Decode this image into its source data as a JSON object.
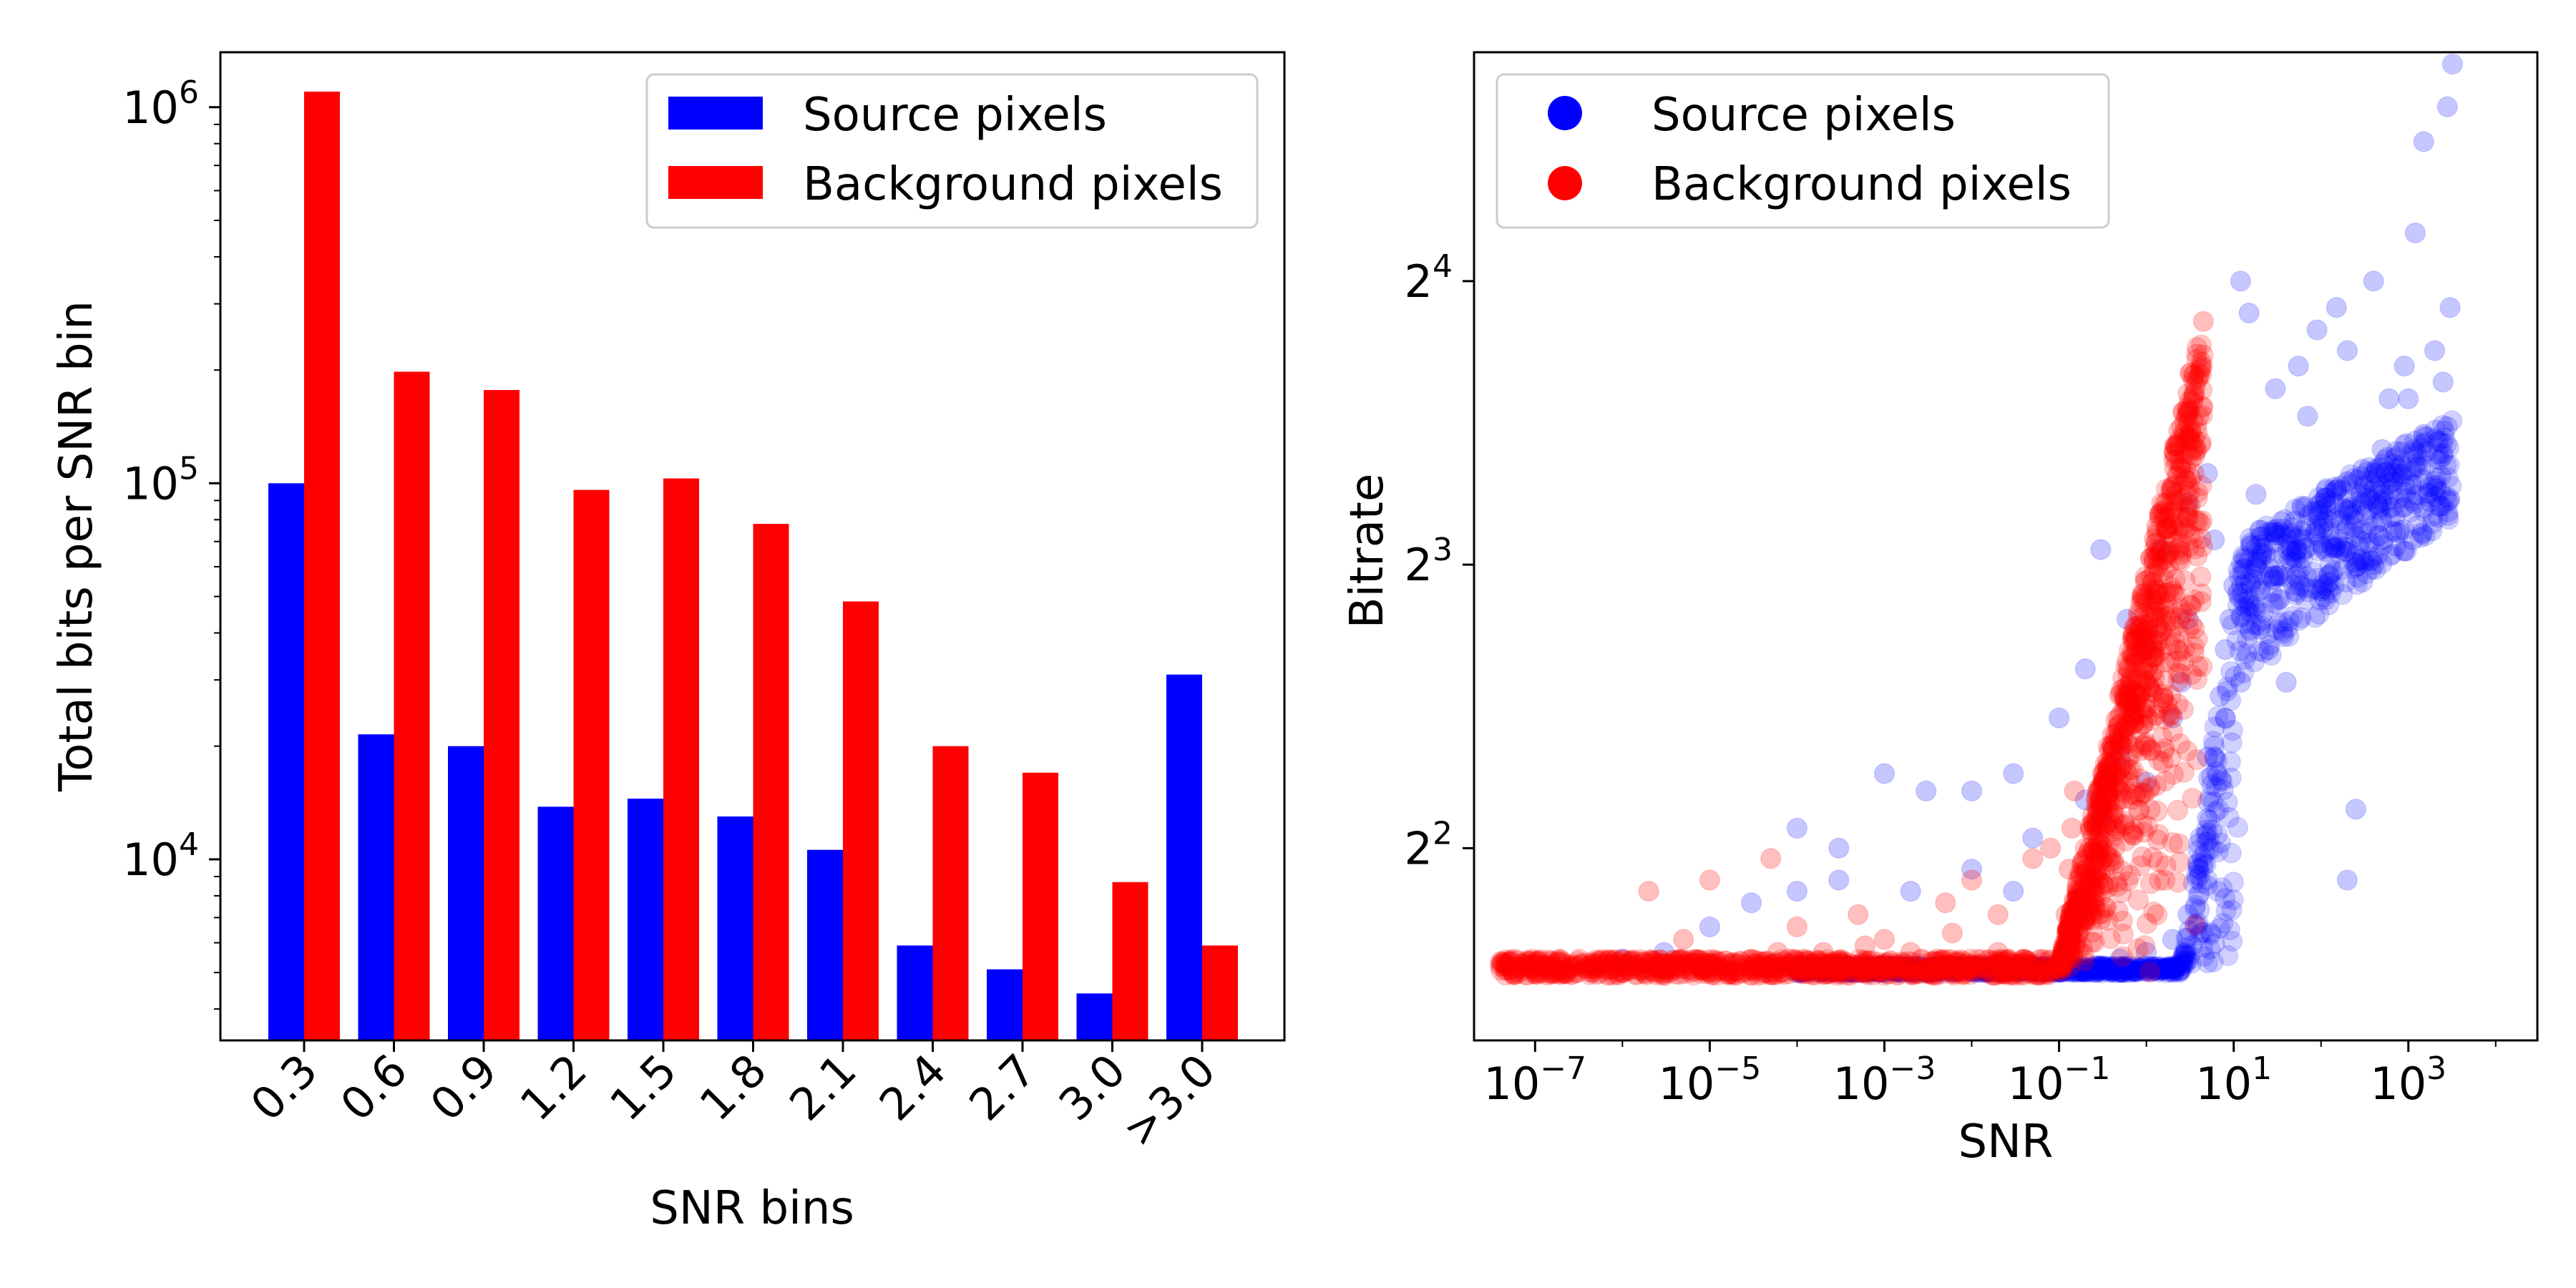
{
  "chart_data": [
    {
      "type": "bar",
      "xlabel": "SNR bins",
      "ylabel": "Total bits per SNR bin",
      "yscale": "log",
      "ylim": [
        3300,
        1400000
      ],
      "categories": [
        "0.3",
        "0.6",
        "0.9",
        "1.2",
        "1.5",
        "1.8",
        "2.1",
        "2.4",
        "2.7",
        "3.0",
        ">3.0"
      ],
      "yticks": [
        {
          "base": "10",
          "exp": "4",
          "value": 10000
        },
        {
          "base": "10",
          "exp": "5",
          "value": 100000
        },
        {
          "base": "10",
          "exp": "6",
          "value": 1000000
        }
      ],
      "legend": {
        "position": "upper right"
      },
      "series": [
        {
          "name": "Source pixels",
          "color": "#0000ff",
          "values": [
            100000,
            21500,
            20000,
            13800,
            14500,
            13000,
            10600,
            5900,
            5100,
            4400,
            31000
          ]
        },
        {
          "name": "Background pixels",
          "color": "#ff0000",
          "values": [
            1100000,
            198000,
            177000,
            96000,
            103000,
            78000,
            48500,
            20000,
            17000,
            8700,
            5900
          ]
        }
      ]
    },
    {
      "type": "scatter",
      "xlabel": "SNR",
      "ylabel": "Bitrate",
      "xscale": "log",
      "yscale": "log2",
      "xlim": [
        2e-08,
        30000
      ],
      "ylim": [
        2.5,
        28
      ],
      "xticks": [
        {
          "base": "10",
          "exp": "−7",
          "value": 1e-07
        },
        {
          "base": "10",
          "exp": "−5",
          "value": 1e-05
        },
        {
          "base": "10",
          "exp": "−3",
          "value": 0.001
        },
        {
          "base": "10",
          "exp": "−1",
          "value": 0.1
        },
        {
          "base": "10",
          "exp": "1",
          "value": 10
        },
        {
          "base": "10",
          "exp": "3",
          "value": 1000
        }
      ],
      "yticks": [
        {
          "base": "2",
          "exp": "2",
          "value": 4
        },
        {
          "base": "2",
          "exp": "3",
          "value": 8
        },
        {
          "base": "2",
          "exp": "4",
          "value": 16
        }
      ],
      "legend": {
        "position": "upper left"
      },
      "series": [
        {
          "name": "Source pixels",
          "color": "#0000ff",
          "points": [
            [
              0.0001,
              2.95
            ],
            [
              0.001,
              2.95
            ],
            [
              0.01,
              2.96
            ],
            [
              0.05,
              3.0
            ],
            [
              0.1,
              3.02
            ],
            [
              0.5,
              3.05
            ],
            [
              1,
              3.1
            ],
            [
              2,
              3.2
            ],
            [
              3,
              3.4
            ],
            [
              4,
              3.8
            ],
            [
              5,
              4.3
            ],
            [
              6,
              5.0
            ],
            [
              7,
              5.8
            ],
            [
              8,
              6.5
            ],
            [
              9,
              7.0
            ],
            [
              10,
              7.6
            ],
            [
              15,
              8.1
            ],
            [
              20,
              8.4
            ],
            [
              30,
              8.6
            ],
            [
              50,
              8.9
            ],
            [
              80,
              9.1
            ],
            [
              100,
              9.3
            ],
            [
              150,
              9.6
            ],
            [
              200,
              9.8
            ],
            [
              300,
              10.1
            ],
            [
              500,
              10.6
            ],
            [
              1000,
              12.0
            ],
            [
              2000,
              13.5
            ],
            [
              3000,
              15.0
            ],
            [
              2800,
              24.5
            ],
            [
              3200,
              27.2
            ],
            [
              1500,
              22.5
            ],
            [
              1200,
              18.0
            ],
            [
              2500,
              12.5
            ],
            [
              150,
              15.0
            ],
            [
              90,
              14.2
            ],
            [
              55,
              13.0
            ],
            [
              30,
              12.3
            ],
            [
              15,
              14.8
            ],
            [
              12,
              16.0
            ],
            [
              20,
              7.5
            ],
            [
              5,
              10.0
            ],
            [
              3,
              9.3
            ],
            [
              1.5,
              8.3
            ],
            [
              0.6,
              7.0
            ],
            [
              0.3,
              8.3
            ],
            [
              0.2,
              6.2
            ],
            [
              0.1,
              5.5
            ],
            [
              0.03,
              4.8
            ],
            [
              0.01,
              4.6
            ],
            [
              0.003,
              4.6
            ],
            [
              0.001,
              4.8
            ],
            [
              0.0003,
              4.0
            ],
            [
              0.0001,
              3.6
            ],
            [
              3e-05,
              3.5
            ],
            [
              1e-05,
              3.3
            ],
            [
              3e-06,
              3.1
            ],
            [
              1e-06,
              3.05
            ],
            [
              0.0001,
              4.2
            ],
            [
              0.0003,
              3.7
            ],
            [
              0.002,
              3.6
            ],
            [
              0.01,
              3.8
            ],
            [
              0.03,
              3.6
            ],
            [
              0.3,
              4.3
            ],
            [
              1,
              4.7
            ],
            [
              2,
              5.5
            ],
            [
              2.5,
              6.0
            ],
            [
              5,
              5.0
            ],
            [
              8,
              5.5
            ],
            [
              12,
              6.0
            ],
            [
              25,
              6.5
            ],
            [
              40,
              6.0
            ],
            [
              100,
              7.5
            ],
            [
              200,
              3.7
            ],
            [
              250,
              4.4
            ],
            [
              400,
              8.0
            ],
            [
              700,
              9.0
            ],
            [
              1500,
              11.0
            ],
            [
              2500,
              10.5
            ],
            [
              600,
              12.0
            ],
            [
              900,
              13.0
            ],
            [
              400,
              16.0
            ],
            [
              200,
              13.5
            ],
            [
              70,
              11.5
            ],
            [
              18,
              9.5
            ],
            [
              6,
              8.5
            ],
            [
              3,
              7.0
            ],
            [
              1,
              6.5
            ],
            [
              0.5,
              5.0
            ],
            [
              0.2,
              4.5
            ],
            [
              0.05,
              4.1
            ],
            [
              0.0003,
              3.0
            ]
          ]
        },
        {
          "name": "Background pixels",
          "color": "#ff0000",
          "points": [
            [
              4e-08,
              3.0
            ],
            [
              1e-07,
              2.95
            ],
            [
              3e-07,
              2.95
            ],
            [
              1e-06,
              2.95
            ],
            [
              3e-06,
              2.95
            ],
            [
              1e-05,
              2.96
            ],
            [
              3e-05,
              2.96
            ],
            [
              0.0001,
              2.97
            ],
            [
              0.0003,
              2.97
            ],
            [
              0.001,
              2.97
            ],
            [
              0.003,
              2.98
            ],
            [
              0.01,
              2.98
            ],
            [
              0.03,
              2.99
            ],
            [
              0.1,
              3.0
            ],
            [
              0.12,
              3.4
            ],
            [
              0.13,
              3.8
            ],
            [
              0.14,
              4.2
            ],
            [
              0.15,
              4.6
            ],
            [
              0.2,
              3.5
            ],
            [
              0.25,
              4.0
            ],
            [
              0.3,
              4.4
            ],
            [
              0.4,
              4.8
            ],
            [
              0.5,
              5.1
            ],
            [
              0.6,
              5.4
            ],
            [
              0.8,
              5.8
            ],
            [
              1,
              6.2
            ],
            [
              1.5,
              6.8
            ],
            [
              2,
              7.5
            ],
            [
              2.5,
              8.2
            ],
            [
              3,
              9.0
            ],
            [
              3.5,
              10.0
            ],
            [
              4,
              11.5
            ],
            [
              4.2,
              13.0
            ],
            [
              4.5,
              14.5
            ],
            [
              2e-06,
              3.6
            ],
            [
              5e-06,
              3.2
            ],
            [
              1e-05,
              3.7
            ],
            [
              5e-05,
              3.9
            ],
            [
              0.0001,
              3.3
            ],
            [
              0.0005,
              3.4
            ],
            [
              0.001,
              3.2
            ],
            [
              0.005,
              3.5
            ],
            [
              0.01,
              3.7
            ],
            [
              0.02,
              3.4
            ],
            [
              0.05,
              3.9
            ],
            [
              0.08,
              4.0
            ],
            [
              0.0002,
              3.1
            ],
            [
              0.002,
              3.1
            ],
            [
              0.02,
              3.1
            ],
            [
              8e-05,
              3.05
            ],
            [
              5e-07,
              3.0
            ],
            [
              0.0008,
              3.0
            ],
            [
              0.004,
              3.05
            ],
            [
              0.04,
              3.05
            ],
            [
              0.006,
              3.25
            ],
            [
              0.0006,
              3.15
            ],
            [
              6e-05,
              3.1
            ]
          ]
        }
      ]
    }
  ]
}
